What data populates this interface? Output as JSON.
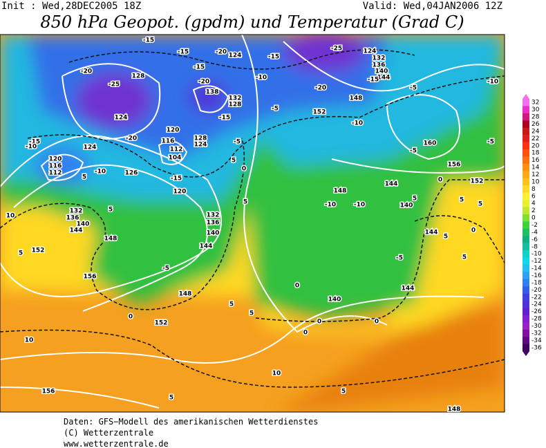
{
  "header": {
    "init": "Init : Wed,28DEC2005 18Z",
    "valid": "Valid: Wed,04JAN2006 12Z",
    "title": "850 hPa Geopot. (gpdm) und Temperatur (Grad C)"
  },
  "map": {
    "geopotential_labels": [
      124,
      128,
      124,
      120,
      116,
      112,
      104,
      124,
      120,
      116,
      112,
      126,
      120,
      128,
      124,
      132,
      128,
      138,
      132,
      136,
      140,
      144,
      148,
      152,
      156,
      148,
      152,
      132,
      136,
      140,
      144,
      152,
      148,
      160,
      156,
      152,
      148,
      144,
      140,
      144,
      144,
      140,
      156,
      148,
      124,
      132,
      136,
      140,
      144
    ],
    "temperature_labels": [
      -15,
      -15,
      -20,
      -15,
      -25,
      -20,
      -15,
      -20,
      -10,
      -25,
      -20,
      -15,
      -5,
      -10,
      -15,
      -5,
      -10,
      -5,
      -5,
      -20,
      -15,
      -10,
      -10,
      -15,
      -5,
      5,
      0,
      5,
      5,
      0,
      -10,
      -10,
      5,
      5,
      5,
      0,
      5,
      5,
      -5,
      -5,
      5,
      0,
      0,
      5,
      5,
      0,
      0,
      0,
      10,
      10,
      5,
      5,
      10,
      5
    ]
  },
  "colorbar": {
    "values": [
      32,
      30,
      28,
      26,
      24,
      22,
      20,
      18,
      16,
      14,
      12,
      10,
      8,
      6,
      4,
      2,
      0,
      -2,
      -4,
      -6,
      -8,
      -10,
      -12,
      -14,
      -16,
      -18,
      -20,
      -22,
      -24,
      -26,
      -28,
      -30,
      -32,
      -34,
      -36
    ],
    "colors": [
      "#f070f0",
      "#e830c8",
      "#d01880",
      "#b00020",
      "#c81818",
      "#e02020",
      "#ff3010",
      "#ff5010",
      "#ff7010",
      "#ff9010",
      "#ffa818",
      "#ffc020",
      "#ffd828",
      "#fff030",
      "#e8f030",
      "#c0e830",
      "#80e030",
      "#40d040",
      "#20c060",
      "#10b080",
      "#10c0a0",
      "#10d0c8",
      "#10d8e8",
      "#20c0f0",
      "#30a0f0",
      "#3080f0",
      "#3060e8",
      "#4040e0",
      "#5030d8",
      "#6020d0",
      "#8020d0",
      "#9820c8",
      "#8010a0",
      "#600880",
      "#400060"
    ]
  },
  "footer": {
    "lines": [
      "Daten: GFS−Modell des amerikanischen Wetterdienstes",
      "(C) Wetterzentrale",
      "www.wetterzentrale.de"
    ]
  }
}
